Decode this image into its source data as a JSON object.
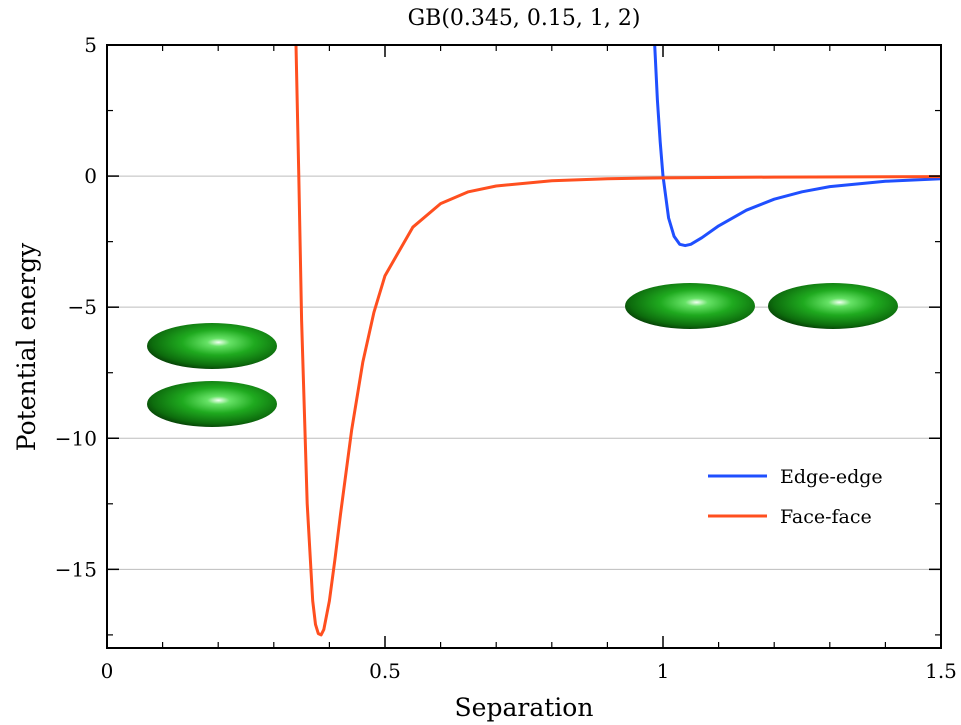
{
  "chart_data": {
    "type": "line",
    "title": "GB(0.345, 0.15, 1, 2)",
    "xlabel": "Separation",
    "ylabel": "Potential energy",
    "xlim": [
      0,
      1.5
    ],
    "ylim": [
      -18,
      5
    ],
    "xticks": [
      0,
      0.5,
      1,
      1.5
    ],
    "xtick_labels": [
      "0",
      "0.5",
      "1",
      "1.5"
    ],
    "yticks": [
      5,
      0,
      -5,
      -10,
      -15
    ],
    "ytick_labels": [
      "5",
      "0",
      "−5",
      "−10",
      "−15"
    ],
    "grid": "horizontal",
    "legend": "lower-right",
    "series": [
      {
        "name": "Edge-edge",
        "color": "#1f4fff",
        "x": [
          0.985,
          0.99,
          0.995,
          1.0,
          1.01,
          1.02,
          1.03,
          1.04,
          1.05,
          1.07,
          1.1,
          1.15,
          1.2,
          1.25,
          1.3,
          1.4,
          1.5
        ],
        "y": [
          5.0,
          2.9,
          1.3,
          0.0,
          -1.6,
          -2.3,
          -2.6,
          -2.65,
          -2.6,
          -2.35,
          -1.9,
          -1.3,
          -0.88,
          -0.6,
          -0.4,
          -0.2,
          -0.1
        ]
      },
      {
        "name": "Face-face",
        "color": "#ff4f1f",
        "x": [
          0.34,
          0.345,
          0.35,
          0.36,
          0.37,
          0.375,
          0.38,
          0.385,
          0.39,
          0.4,
          0.41,
          0.42,
          0.44,
          0.46,
          0.48,
          0.5,
          0.55,
          0.6,
          0.65,
          0.7,
          0.8,
          0.9,
          1.0,
          1.2,
          1.5
        ],
        "y": [
          5.0,
          0.0,
          -5.5,
          -12.5,
          -16.2,
          -17.1,
          -17.45,
          -17.5,
          -17.3,
          -16.2,
          -14.6,
          -12.9,
          -9.7,
          -7.1,
          -5.2,
          -3.8,
          -1.95,
          -1.05,
          -0.6,
          -0.38,
          -0.18,
          -0.1,
          -0.07,
          -0.04,
          -0.02
        ]
      }
    ]
  }
}
